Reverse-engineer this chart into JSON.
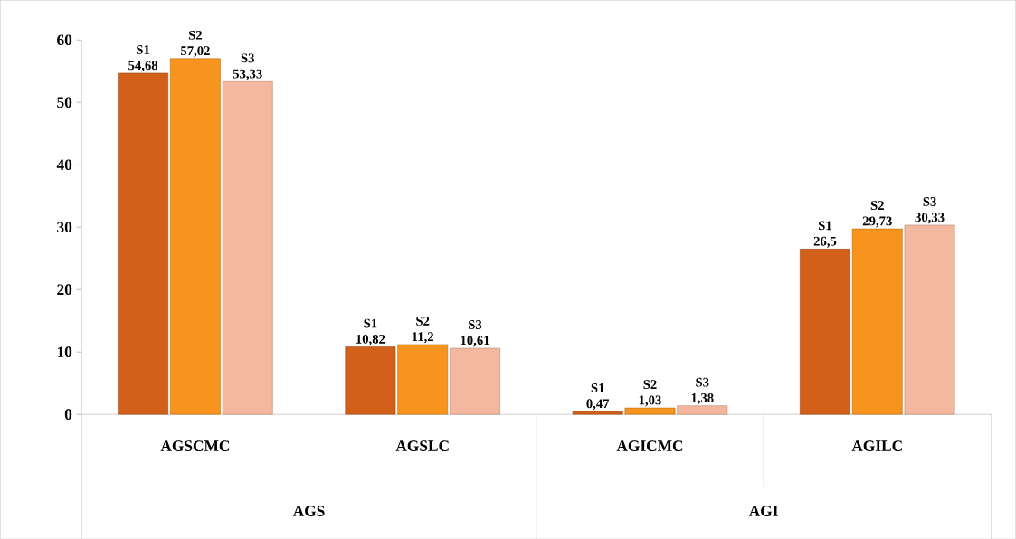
{
  "chart_data": {
    "type": "bar",
    "categories": [
      "AGSCMC",
      "AGSLC",
      "AGICMC",
      "AGILC"
    ],
    "series": [
      {
        "name": "S1",
        "color": "#d2601a",
        "values": [
          54.68,
          10.82,
          0.47,
          26.5
        ],
        "value_labels": [
          "54,68",
          "10,82",
          "0,47",
          "26,5"
        ]
      },
      {
        "name": "S2",
        "color": "#f7941d",
        "values": [
          57.02,
          11.2,
          1.03,
          29.73
        ],
        "value_labels": [
          "57,02",
          "11,2",
          "1,03",
          "29,73"
        ]
      },
      {
        "name": "S3",
        "color": "#f4b8a0",
        "values": [
          53.33,
          10.61,
          1.38,
          30.33
        ],
        "value_labels": [
          "53,33",
          "10,61",
          "1,38",
          "30,33"
        ]
      }
    ],
    "annotations": [
      "AGS",
      "AGI"
    ],
    "ylim": [
      0,
      60
    ],
    "yticks": [
      0,
      10,
      20,
      30,
      40,
      50,
      60
    ],
    "grid": false
  }
}
